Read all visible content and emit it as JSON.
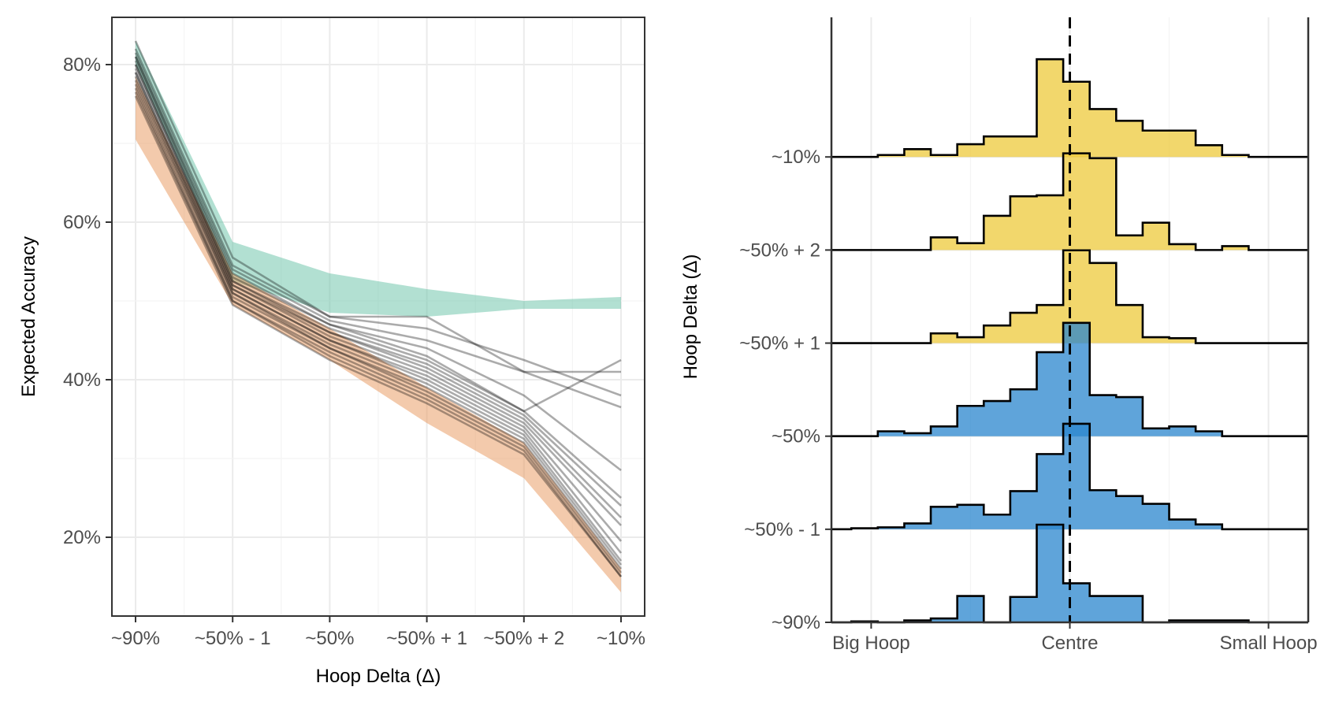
{
  "chart_data": [
    {
      "type": "line",
      "xlabel": "Hoop Delta (Δ)",
      "ylabel": "Expected Accuracy",
      "categories": [
        "~90%",
        "~50% - 1",
        "~50%",
        "~50% + 1",
        "~50% + 2",
        "~10%"
      ],
      "yticks": [
        0.2,
        0.4,
        0.6,
        0.8
      ],
      "ytick_labels": [
        "20%",
        "40%",
        "60%",
        "80%"
      ],
      "ylim": [
        0.1,
        0.86
      ],
      "grid": true,
      "bands": [
        {
          "color": "#66c2a5",
          "lower": [
            0.8,
            0.525,
            0.485,
            0.48,
            0.49,
            0.49
          ],
          "upper": [
            0.83,
            0.575,
            0.535,
            0.515,
            0.5,
            0.505
          ]
        },
        {
          "color": "#e8955a",
          "lower": [
            0.705,
            0.495,
            0.425,
            0.345,
            0.275,
            0.13
          ],
          "upper": [
            0.785,
            0.535,
            0.465,
            0.39,
            0.32,
            0.16
          ]
        }
      ],
      "series": [
        {
          "values": [
            0.83,
            0.555,
            0.48,
            0.465,
            0.425,
            0.38
          ]
        },
        {
          "values": [
            0.82,
            0.545,
            0.48,
            0.48,
            0.41,
            0.41
          ]
        },
        {
          "values": [
            0.815,
            0.54,
            0.475,
            0.45,
            0.41,
            0.365
          ]
        },
        {
          "values": [
            0.81,
            0.535,
            0.47,
            0.44,
            0.38,
            0.285
          ]
        },
        {
          "values": [
            0.81,
            0.53,
            0.47,
            0.43,
            0.36,
            0.425
          ]
        },
        {
          "values": [
            0.805,
            0.525,
            0.465,
            0.425,
            0.36,
            0.25
          ]
        },
        {
          "values": [
            0.8,
            0.525,
            0.46,
            0.42,
            0.355,
            0.24
          ]
        },
        {
          "values": [
            0.8,
            0.52,
            0.46,
            0.415,
            0.35,
            0.225
          ]
        },
        {
          "values": [
            0.795,
            0.52,
            0.455,
            0.41,
            0.345,
            0.215
          ]
        },
        {
          "values": [
            0.79,
            0.515,
            0.45,
            0.405,
            0.34,
            0.195
          ]
        },
        {
          "values": [
            0.79,
            0.515,
            0.45,
            0.4,
            0.335,
            0.18
          ]
        },
        {
          "values": [
            0.785,
            0.51,
            0.445,
            0.395,
            0.33,
            0.17
          ]
        },
        {
          "values": [
            0.78,
            0.51,
            0.44,
            0.39,
            0.325,
            0.165
          ]
        },
        {
          "values": [
            0.775,
            0.505,
            0.44,
            0.385,
            0.32,
            0.16
          ]
        },
        {
          "values": [
            0.77,
            0.5,
            0.435,
            0.38,
            0.315,
            0.155
          ]
        },
        {
          "values": [
            0.765,
            0.5,
            0.43,
            0.375,
            0.31,
            0.15
          ]
        },
        {
          "values": [
            0.76,
            0.495,
            0.425,
            0.37,
            0.305,
            0.15
          ]
        }
      ]
    },
    {
      "type": "histogram",
      "xlabel": "",
      "ylabel": "Hoop Delta (Δ)",
      "xtick_labels": [
        "Big Hoop",
        "Centre",
        "Small Hoop"
      ],
      "xticks": [
        -1,
        0,
        1
      ],
      "xlim": [
        -1.2,
        1.2
      ],
      "centre_line": 0,
      "row_labels": [
        "~90%",
        "~50% - 1",
        "~50%",
        "~50% + 1",
        "~50% + 2",
        "~10%"
      ],
      "row_colors": [
        "#2a86cd",
        "#2a86cd",
        "#2a86cd",
        "#eeca3b",
        "#eeca3b",
        "#eeca3b"
      ],
      "bin_edges": [
        -1.1,
        -0.9666,
        -0.8333,
        -0.7,
        -0.5666,
        -0.4333,
        -0.3,
        -0.1666,
        -0.0333,
        0.1,
        0.2333,
        0.3666,
        0.5,
        0.6333,
        0.7666,
        0.9,
        1.0333
      ],
      "densities": [
        [
          0.01,
          0.0,
          0.02,
          0.04,
          0.27,
          0.0,
          0.26,
          1.0,
          0.4,
          0.27,
          0.27,
          0.0,
          0.02,
          0.02,
          0.02,
          0.0
        ],
        [
          0.01,
          0.02,
          0.06,
          0.23,
          0.25,
          0.15,
          0.39,
          0.77,
          1.08,
          0.4,
          0.34,
          0.26,
          0.1,
          0.05,
          0.0,
          0.0
        ],
        [
          0.0,
          0.05,
          0.03,
          0.1,
          0.31,
          0.36,
          0.48,
          0.86,
          1.16,
          0.42,
          0.4,
          0.08,
          0.1,
          0.05,
          0.0,
          0.0
        ],
        [
          0.0,
          0.0,
          0.0,
          0.1,
          0.06,
          0.18,
          0.31,
          0.39,
          0.95,
          0.82,
          0.39,
          0.06,
          0.05,
          0.0,
          0.0,
          0.0
        ],
        [
          0.0,
          0.0,
          0.0,
          0.13,
          0.07,
          0.35,
          0.55,
          0.56,
          0.99,
          0.94,
          0.15,
          0.28,
          0.06,
          0.0,
          0.04,
          0.0
        ],
        [
          0.0,
          0.02,
          0.08,
          0.02,
          0.13,
          0.21,
          0.21,
          1.0,
          0.77,
          0.49,
          0.37,
          0.27,
          0.27,
          0.12,
          0.02,
          0.0
        ]
      ]
    }
  ]
}
